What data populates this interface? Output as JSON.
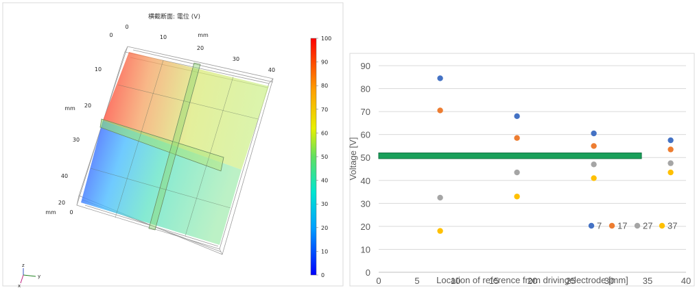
{
  "chart_data": [
    {
      "type": "3d-surface-slice",
      "title": "横截断面: 電位 (V)",
      "x_axis": {
        "unit_label": "mm",
        "ticks": [
          "0",
          "10",
          "20",
          "30",
          "40"
        ]
      },
      "y_axis": {
        "unit_label": "mm",
        "ticks": [
          "0",
          "10",
          "20",
          "30",
          "40"
        ]
      },
      "z_axis": {
        "unit_label": "mm",
        "ticks": [
          "20",
          "0"
        ]
      },
      "colorbar": {
        "min": 0,
        "max": 100,
        "ticks": [
          "100",
          "90",
          "80",
          "70",
          "60",
          "50",
          "40",
          "30",
          "20",
          "10",
          "0"
        ],
        "colormap": "rainbow"
      },
      "triad": {
        "labels": [
          "z",
          "y",
          "x"
        ]
      }
    },
    {
      "type": "scatter",
      "xlabel": "Location of reference from drivingelectrode [mm]",
      "ylabel": "Voltage [V]",
      "xlim": [
        0,
        40
      ],
      "ylim": [
        0,
        90
      ],
      "x_ticks": [
        "0",
        "5",
        "10",
        "15",
        "20",
        "25",
        "30",
        "35",
        "40"
      ],
      "y_ticks": [
        "0",
        "10",
        "20",
        "30",
        "40",
        "50",
        "60",
        "70",
        "80",
        "90"
      ],
      "grid": "horizontal",
      "legend_position": "bottom-right",
      "reference_band": {
        "y_from": 49.5,
        "y_to": 52,
        "x_from": 0,
        "x_to": 34.2,
        "color": "#1aa05a"
      },
      "x": [
        8,
        18,
        28,
        38
      ],
      "series": [
        {
          "name": "7",
          "color": "#4472c4",
          "values": [
            84.5,
            68,
            60.5,
            57.5
          ]
        },
        {
          "name": "17",
          "color": "#ed7d31",
          "values": [
            70.5,
            58.5,
            55,
            53.5
          ]
        },
        {
          "name": "27",
          "color": "#a5a5a5",
          "values": [
            32.5,
            43.5,
            47,
            47.5
          ]
        },
        {
          "name": "37",
          "color": "#ffc000",
          "values": [
            18,
            33,
            41,
            43.5
          ]
        }
      ]
    }
  ]
}
